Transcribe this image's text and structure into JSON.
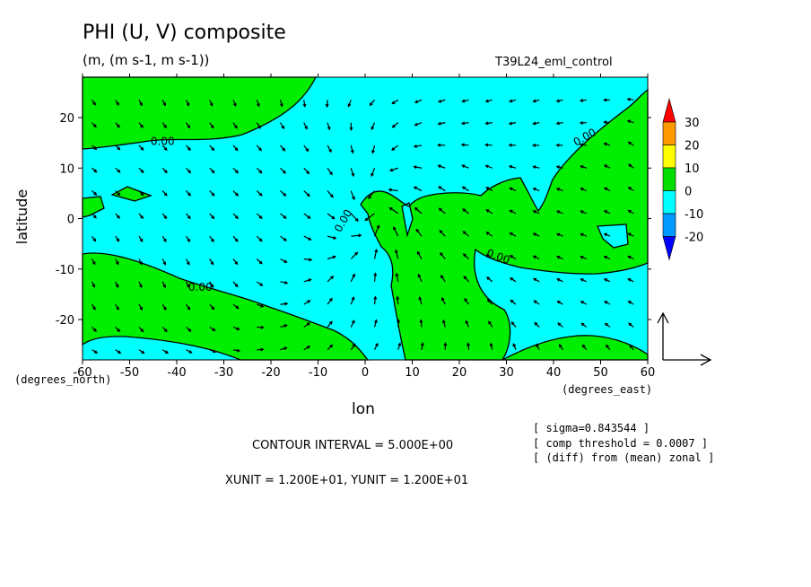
{
  "chart_data": {
    "type": "filled contour with vector overlay",
    "title": "PHI (U, V) composite",
    "subtitle": "(m, (m s-1, m s-1))",
    "run_label": "T39L24_eml_control",
    "xlabel": "lon",
    "ylabel": "latitude",
    "x_unit_label": "(degrees_east)",
    "y_unit_label": "(degrees_north)",
    "xlim": [
      -60,
      60
    ],
    "ylim": [
      -28,
      28
    ],
    "x_ticks": [
      -60,
      -50,
      -40,
      -30,
      -20,
      -10,
      0,
      10,
      20,
      30,
      40,
      50,
      60
    ],
    "x_tick_labels": [
      "-60",
      "-50",
      "-40",
      "-30",
      "-20",
      "-10",
      "0",
      "10",
      "20",
      "30",
      "40",
      "50",
      "60"
    ],
    "y_ticks": [
      -20,
      -10,
      0,
      10,
      20
    ],
    "y_tick_labels": [
      "-20",
      "-10",
      "0",
      "10",
      "20"
    ],
    "colorbar": {
      "levels": [
        "30",
        "20",
        "10",
        "0",
        "-10",
        "-20"
      ],
      "colors": [
        "#ff0000",
        "#ff9900",
        "#ffff00",
        "#00dd00",
        "#00ffff",
        "#0099ff",
        "#0000ff"
      ]
    },
    "fill_colors": {
      "negative": "#00ffff",
      "positive": "#00ee00"
    },
    "contour_label": "0.00",
    "contour_interval": "CONTOUR INTERVAL = 5.000E+00",
    "vector_units": "XUNIT = 1.200E+01, YUNIT = 1.200E+01",
    "notes": [
      "[ sigma=0.843544 ]",
      "[ comp threshold = 0.0007 ]",
      "[ (diff) from (mean) zonal ]"
    ],
    "grid": false
  }
}
